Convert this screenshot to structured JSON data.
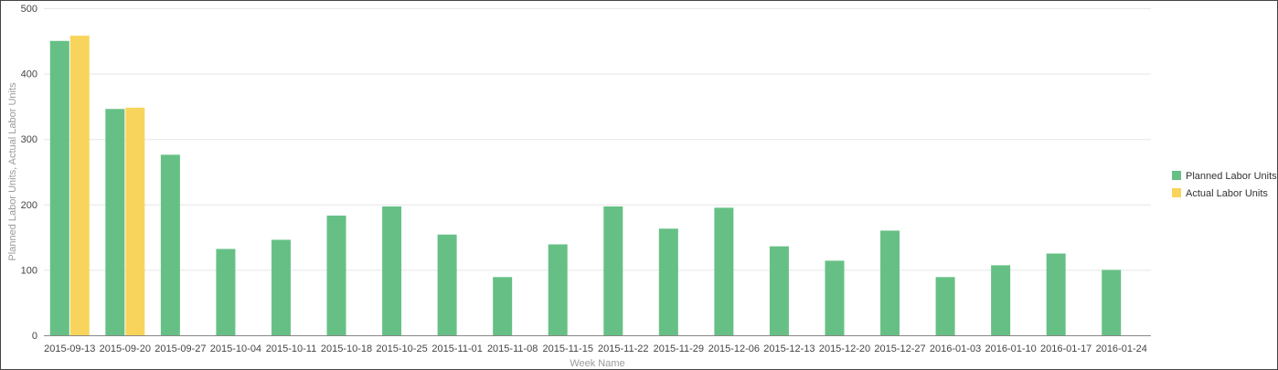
{
  "chart_data": {
    "type": "bar",
    "xlabel": "Week Name",
    "ylabel": "Planned Labor Units, Actual Labor Units",
    "ylim": [
      0,
      500
    ],
    "yticks": [
      0,
      100,
      200,
      300,
      400,
      500
    ],
    "grid": true,
    "legend_position": "right",
    "categories": [
      "2015-09-13",
      "2015-09-20",
      "2015-09-27",
      "2015-10-04",
      "2015-10-11",
      "2015-10-18",
      "2015-10-25",
      "2015-11-01",
      "2015-11-08",
      "2015-11-15",
      "2015-11-22",
      "2015-11-29",
      "2015-12-06",
      "2015-12-13",
      "2015-12-20",
      "2015-12-27",
      "2016-01-03",
      "2016-01-10",
      "2016-01-17",
      "2016-01-24"
    ],
    "series": [
      {
        "name": "Planned Labor Units",
        "color": "#66c085",
        "values": [
          450,
          346,
          276,
          132,
          146,
          183,
          197,
          154,
          89,
          139,
          197,
          163,
          195,
          136,
          114,
          160,
          89,
          107,
          125,
          100
        ]
      },
      {
        "name": "Actual Labor Units",
        "color": "#f8d45c",
        "values": [
          458,
          348,
          null,
          null,
          null,
          null,
          null,
          null,
          null,
          null,
          null,
          null,
          null,
          null,
          null,
          null,
          null,
          null,
          null,
          null
        ]
      }
    ]
  }
}
